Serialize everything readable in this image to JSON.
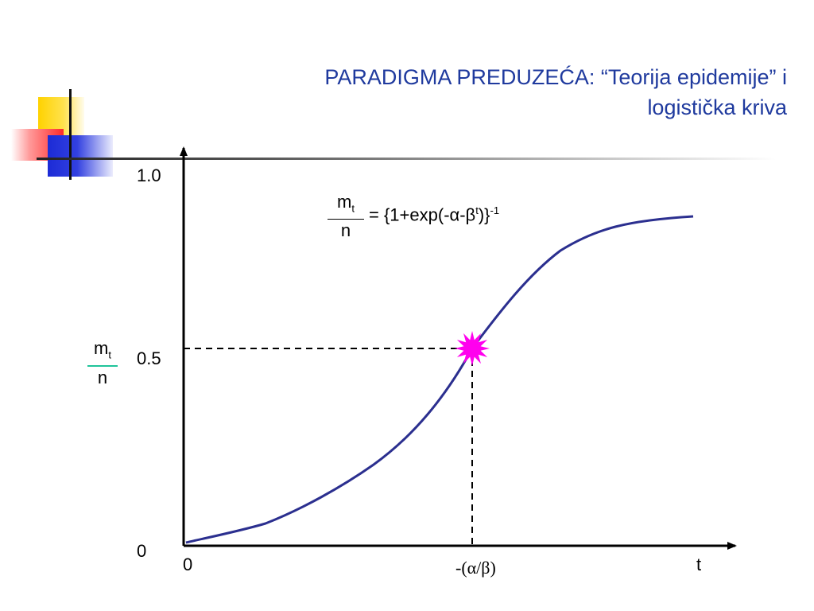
{
  "title": {
    "line1": "PARADIGMA PREDUZEĆA: “Teorija epidemije” i",
    "line2": "logistička kriva"
  },
  "formula": {
    "numerator": "m",
    "numerator_sub": "t",
    "denominator": "n",
    "rhs_start": "= {1+exp(-α-β",
    "rhs_sup_t": "t",
    "rhs_end": ")}",
    "rhs_sup_exp": "-1"
  },
  "y_label": {
    "numerator": "m",
    "numerator_sub": "t",
    "denominator": "n"
  },
  "y_ticks": [
    "1.0",
    "0.5",
    "0"
  ],
  "x_ticks": {
    "origin": "0",
    "inflection": "-(α/β)",
    "axis_end": "t"
  },
  "colors": {
    "title": "#1f3a9e",
    "curve": "#2b2f8f",
    "marker": "#ff00ee",
    "fraction_line_y": "#1fc49a",
    "axes": "#000000"
  },
  "icons": {
    "inflection_marker": "starburst-icon"
  }
}
